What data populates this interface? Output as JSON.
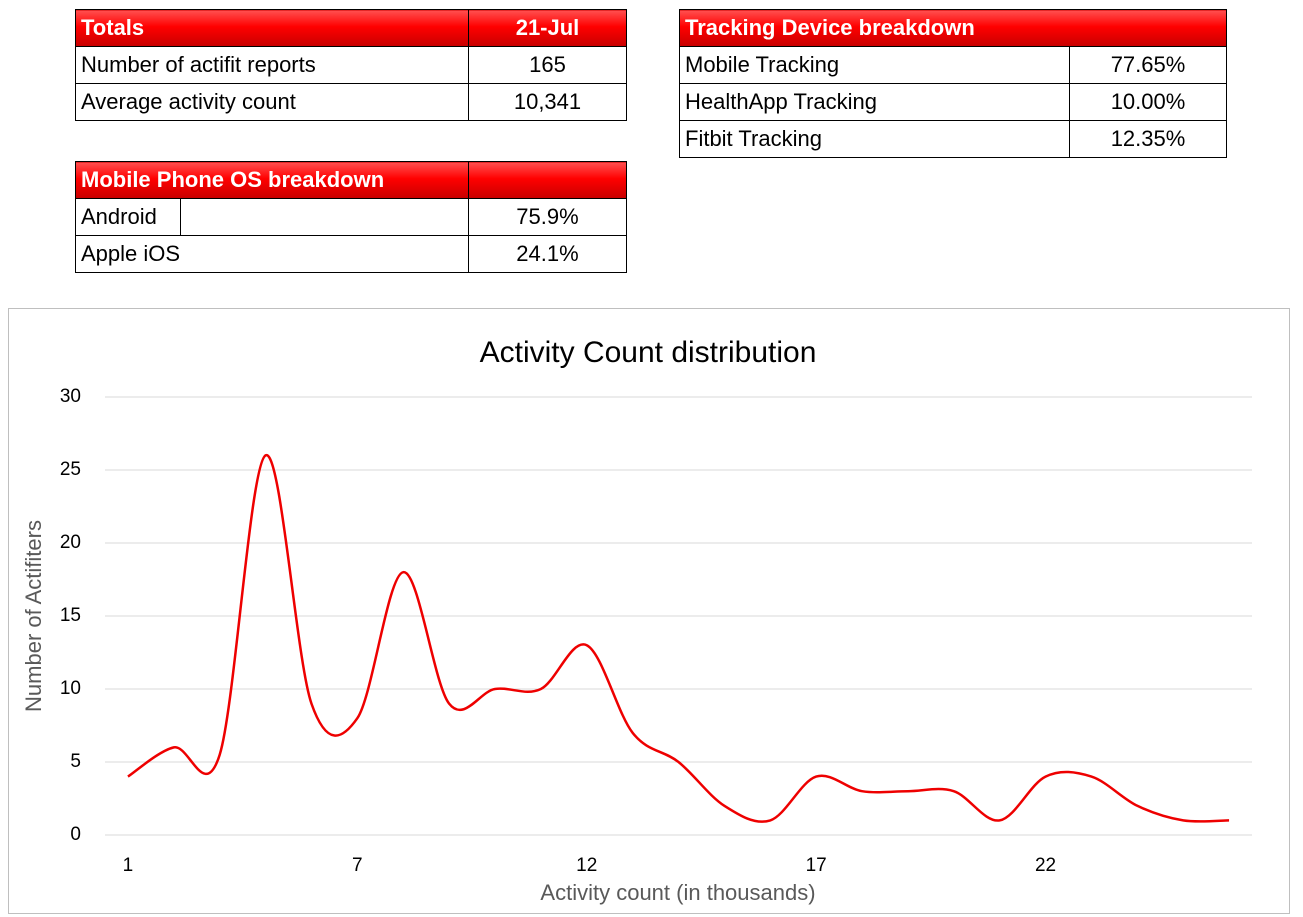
{
  "totals": {
    "header": [
      "Totals",
      "21-Jul"
    ],
    "rows": [
      [
        "Number of actifit reports",
        "165"
      ],
      [
        "Average activity count",
        "10,341"
      ]
    ]
  },
  "os": {
    "header": "Mobile Phone OS breakdown",
    "rows": [
      [
        "Android",
        "75.9%"
      ],
      [
        "Apple iOS",
        "24.1%"
      ]
    ]
  },
  "tracking": {
    "header": "Tracking Device breakdown",
    "rows": [
      [
        "Mobile Tracking",
        "77.65%"
      ],
      [
        "HealthApp Tracking",
        "10.00%"
      ],
      [
        "Fitbit Tracking",
        "12.35%"
      ]
    ]
  },
  "chart_data": {
    "type": "line",
    "title": "Activity Count distribution",
    "x_label": "Activity count (in thousands)",
    "y_label": "Number of Actifiters",
    "categories": [
      1,
      null,
      null,
      null,
      null,
      7,
      null,
      null,
      null,
      null,
      12,
      null,
      null,
      null,
      null,
      17,
      null,
      null,
      null,
      null,
      22,
      null,
      null,
      null,
      null
    ],
    "series": [
      {
        "name": "Number of Actifiters",
        "color": "#ee0000",
        "values": [
          4,
          6,
          5.5,
          26,
          9,
          8,
          18,
          9,
          10,
          10,
          13,
          7,
          5,
          2,
          1,
          4,
          3,
          3,
          3,
          1,
          4,
          4,
          2,
          1,
          1
        ]
      }
    ],
    "ylim": [
      0,
      30
    ],
    "yticks": [
      0,
      5,
      10,
      15,
      20,
      25,
      30
    ],
    "grid": true
  }
}
